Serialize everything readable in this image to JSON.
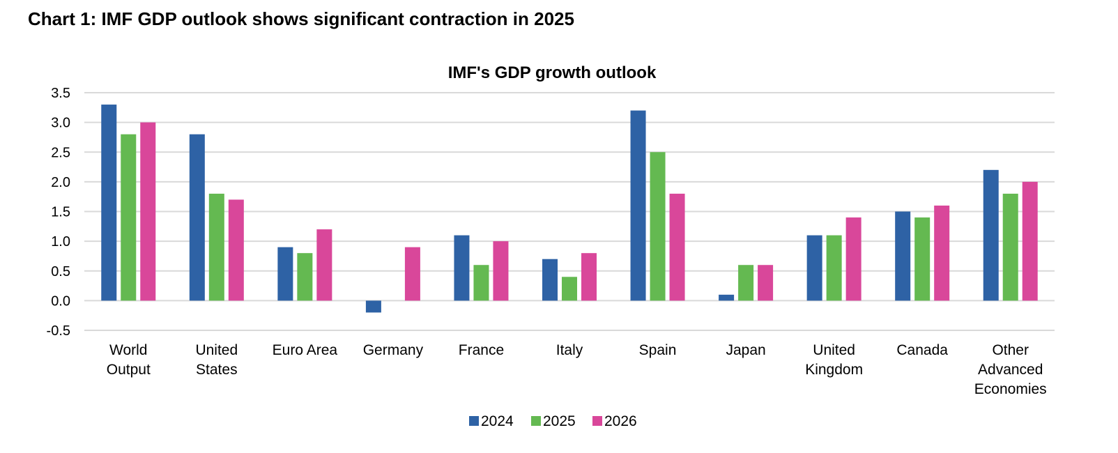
{
  "page": {
    "heading": "Chart 1: IMF GDP outlook shows significant contraction in 2025"
  },
  "chart_data": {
    "type": "bar",
    "title": "IMF's GDP growth outlook",
    "xlabel": "",
    "ylabel": "",
    "ylim": [
      -0.5,
      3.5
    ],
    "yticks": [
      -0.5,
      0.0,
      0.5,
      1.0,
      1.5,
      2.0,
      2.5,
      3.0,
      3.5
    ],
    "ytick_labels": [
      "-0.5",
      "0.0",
      "0.5",
      "1.0",
      "1.5",
      "2.0",
      "2.5",
      "3.0",
      "3.5"
    ],
    "grid": true,
    "legend_position": "bottom-center",
    "categories": [
      [
        "World",
        "Output"
      ],
      [
        "United",
        "States"
      ],
      [
        "Euro Area"
      ],
      [
        "Germany"
      ],
      [
        "France"
      ],
      [
        "Italy"
      ],
      [
        "Spain"
      ],
      [
        "Japan"
      ],
      [
        "United",
        "Kingdom"
      ],
      [
        "Canada"
      ],
      [
        "Other",
        "Advanced",
        "Economies"
      ]
    ],
    "series": [
      {
        "name": "2024",
        "color": "#2e62a5",
        "values": [
          3.3,
          2.8,
          0.9,
          -0.2,
          1.1,
          0.7,
          3.2,
          0.1,
          1.1,
          1.5,
          2.2
        ]
      },
      {
        "name": "2025",
        "color": "#64b951",
        "values": [
          2.8,
          1.8,
          0.8,
          0.0,
          0.6,
          0.4,
          2.5,
          0.6,
          1.1,
          1.4,
          1.8
        ]
      },
      {
        "name": "2026",
        "color": "#d9479a",
        "values": [
          3.0,
          1.7,
          1.2,
          0.9,
          1.0,
          0.8,
          1.8,
          0.6,
          1.4,
          1.6,
          2.0
        ]
      }
    ]
  }
}
